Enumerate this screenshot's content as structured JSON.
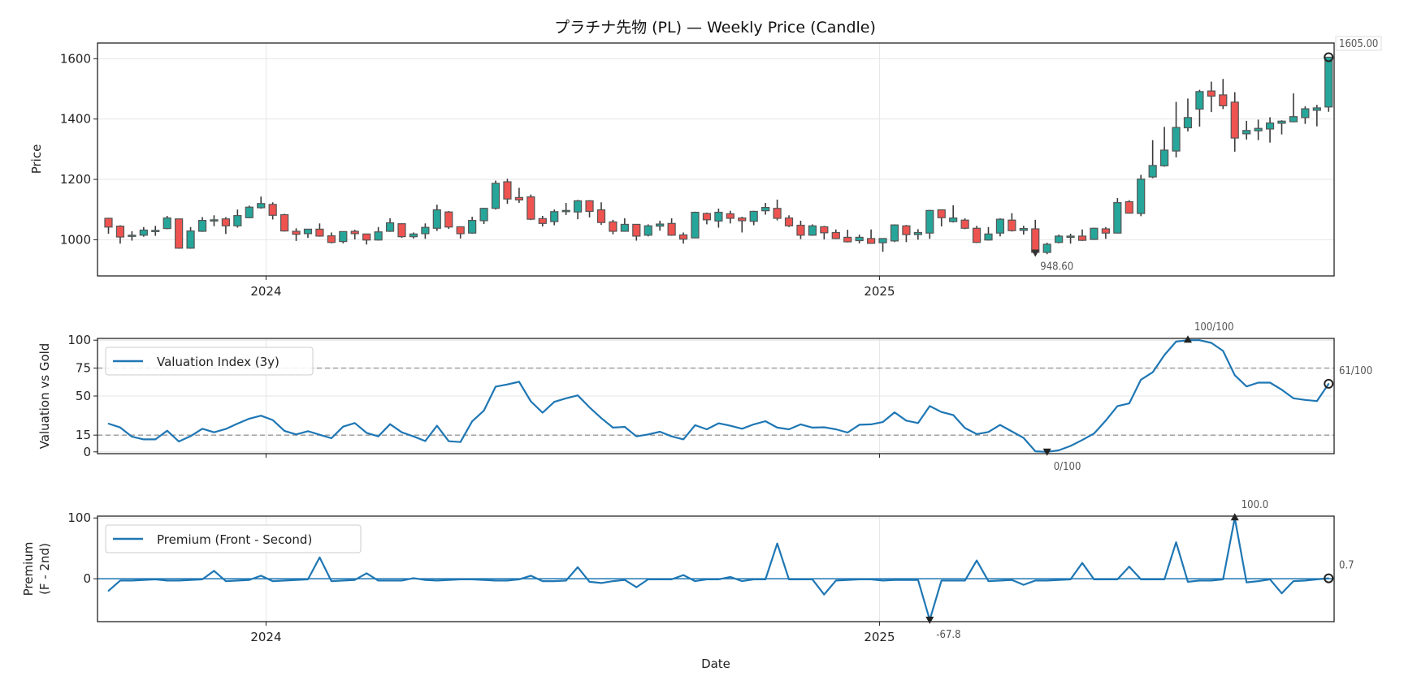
{
  "chart_data": [
    {
      "type": "candlestick",
      "title": "プラチナ先物 (PL) — Weekly Price (Candle)",
      "ylabel": "Price",
      "ylim": [
        880,
        1652
      ],
      "yticks": [
        1000,
        1200,
        1400,
        1600
      ],
      "xticks": [
        "2024",
        "2025"
      ],
      "start_date": "2023-09-29",
      "interval_days": 7,
      "colors": {
        "up": "#26a69a",
        "down": "#ef5350",
        "edge": "#555555"
      },
      "open": [
        1071,
        1045,
        1012,
        1015,
        1029,
        1037,
        1069,
        972,
        1028,
        1063,
        1069,
        1046,
        1073,
        1106,
        1117,
        1083,
        1028,
        1020,
        1035,
        1013,
        994,
        1028,
        1019,
        999,
        1028,
        1053,
        1010,
        1020,
        1038,
        1092,
        1043,
        1022,
        1063,
        1104,
        1192,
        1140,
        1142,
        1070,
        1060,
        1093,
        1092,
        1129,
        1099,
        1059,
        1028,
        1051,
        1015,
        1045,
        1054,
        1016,
        1006,
        1087,
        1062,
        1086,
        1072,
        1061,
        1096,
        1104,
        1072,
        1048,
        1015,
        1043,
        1024,
        1008,
        997,
        1004,
        990,
        996,
        1046,
        1017,
        1022,
        1099,
        1060,
        1065,
        1038,
        999,
        1022,
        1065,
        1031,
        1036,
        958,
        991,
        1008,
        1012,
        1001,
        1036,
        1022,
        1126,
        1087,
        1208,
        1245,
        1294,
        1371,
        1433,
        1493,
        1480,
        1456,
        1351,
        1361,
        1367,
        1386,
        1391,
        1405,
        1429,
        1440
      ],
      "high": [
        1073,
        1048,
        1028,
        1042,
        1046,
        1079,
        1069,
        1042,
        1075,
        1081,
        1075,
        1100,
        1113,
        1143,
        1124,
        1086,
        1038,
        1036,
        1054,
        1024,
        1028,
        1033,
        1020,
        1042,
        1071,
        1055,
        1024,
        1054,
        1116,
        1095,
        1044,
        1076,
        1106,
        1196,
        1202,
        1172,
        1150,
        1079,
        1100,
        1122,
        1132,
        1131,
        1124,
        1066,
        1071,
        1052,
        1051,
        1063,
        1071,
        1024,
        1093,
        1090,
        1103,
        1096,
        1076,
        1096,
        1122,
        1133,
        1081,
        1063,
        1051,
        1046,
        1034,
        1033,
        1017,
        1034,
        1004,
        1051,
        1049,
        1035,
        1099,
        1100,
        1114,
        1071,
        1046,
        1042,
        1071,
        1088,
        1046,
        1066,
        990,
        1017,
        1020,
        1034,
        1040,
        1042,
        1138,
        1131,
        1215,
        1330,
        1374,
        1457,
        1468,
        1497,
        1524,
        1533,
        1489,
        1394,
        1398,
        1406,
        1396,
        1485,
        1442,
        1447,
        1605
      ],
      "low": [
        1020,
        987,
        997,
        1010,
        1013,
        1035,
        970,
        970,
        1026,
        1045,
        1019,
        1040,
        1071,
        1103,
        1067,
        1027,
        996,
        1006,
        1010,
        988,
        988,
        1001,
        984,
        997,
        1026,
        1006,
        1004,
        1003,
        1029,
        1036,
        1004,
        1020,
        1052,
        1100,
        1119,
        1122,
        1065,
        1044,
        1048,
        1082,
        1068,
        1074,
        1049,
        1018,
        1027,
        997,
        1011,
        1030,
        1013,
        987,
        1005,
        1051,
        1040,
        1054,
        1024,
        1048,
        1083,
        1064,
        1042,
        1002,
        1013,
        1001,
        1002,
        991,
        988,
        987,
        960,
        992,
        992,
        1000,
        1003,
        1044,
        1057,
        1035,
        989,
        997,
        1011,
        1027,
        1017,
        948.6,
        952,
        988,
        987,
        996,
        1000,
        1003,
        1021,
        1087,
        1078,
        1204,
        1242,
        1273,
        1359,
        1375,
        1423,
        1433,
        1292,
        1332,
        1330,
        1322,
        1349,
        1391,
        1384,
        1376,
        1424
      ],
      "close": [
        1042,
        1009,
        1015,
        1032,
        1031,
        1072,
        972,
        1029,
        1064,
        1066,
        1046,
        1080,
        1108,
        1120,
        1081,
        1029,
        1018,
        1035,
        1012,
        991,
        1027,
        1020,
        999,
        1026,
        1056,
        1010,
        1019,
        1041,
        1099,
        1042,
        1020,
        1064,
        1104,
        1187,
        1135,
        1132,
        1068,
        1054,
        1093,
        1097,
        1129,
        1094,
        1057,
        1028,
        1051,
        1012,
        1046,
        1052,
        1015,
        1002,
        1091,
        1066,
        1091,
        1071,
        1063,
        1094,
        1107,
        1071,
        1046,
        1015,
        1046,
        1023,
        1004,
        993,
        1008,
        988,
        1004,
        1049,
        1017,
        1024,
        1097,
        1073,
        1072,
        1038,
        991,
        1019,
        1068,
        1030,
        1037,
        958,
        985,
        1012,
        1012,
        998,
        1038,
        1022,
        1123,
        1088,
        1201,
        1246,
        1297,
        1372,
        1405,
        1491,
        1476,
        1444,
        1337,
        1362,
        1369,
        1387,
        1393,
        1408,
        1434,
        1437,
        1605
      ],
      "annotations": {
        "max_label": "1605.00",
        "min_label": "948.60",
        "min_index": 79
      }
    },
    {
      "type": "line",
      "ylabel": "Valuation vs Gold",
      "ylim": [
        -1.6,
        101.6
      ],
      "yticks": [
        0,
        15,
        50,
        75,
        100
      ],
      "reference_lines": [
        15,
        75
      ],
      "legend": "Valuation Index (3y)",
      "legend_position": "upper-left",
      "color": "#1f77b4",
      "values": [
        25.3,
        21.9,
        13.6,
        11.2,
        11.2,
        19.0,
        9.3,
        14.1,
        20.7,
        17.5,
        20.5,
        25.3,
        29.7,
        32.4,
        28.5,
        18.8,
        15.6,
        18.5,
        15.3,
        12.2,
        22.6,
        25.8,
        17.0,
        13.9,
        24.8,
        17.5,
        13.9,
        9.7,
        23.4,
        9.5,
        8.8,
        27.3,
        37.0,
        58.4,
        60.4,
        62.8,
        45.3,
        35.1,
        44.8,
        48.0,
        50.6,
        39.9,
        30.2,
        21.7,
        22.4,
        13.9,
        15.6,
        18.0,
        13.9,
        11.2,
        23.9,
        20.2,
        25.6,
        23.4,
        20.7,
        24.6,
        27.5,
        21.7,
        20.2,
        24.6,
        21.7,
        22.0,
        20.2,
        17.3,
        24.3,
        24.6,
        26.7,
        35.4,
        28.0,
        25.8,
        41.0,
        35.7,
        33.0,
        21.4,
        15.9,
        17.8,
        24.1,
        18.3,
        12.5,
        0.5,
        0,
        1.4,
        5.3,
        10.6,
        16.4,
        28.0,
        41.0,
        43.4,
        64.6,
        71.3,
        86.7,
        98.8,
        100,
        100,
        97.6,
        90.4,
        68.7,
        58.6,
        62,
        62,
        55.7,
        48,
        46.5,
        45.5,
        61
      ],
      "annotations": {
        "max_label": "100/100",
        "max_index": 92,
        "min_label": "0/100",
        "min_index": 80,
        "last_label": "61/100"
      }
    },
    {
      "type": "line",
      "ylabel_lines": [
        "Premium",
        "(F - 2nd)"
      ],
      "xlabel": "Date",
      "ylim": [
        -70.6,
        103
      ],
      "yticks": [
        0,
        100
      ],
      "xticks": [
        "2024",
        "2025"
      ],
      "reference_lines": [
        0
      ],
      "legend": "Premium (Front - Second)",
      "legend_position": "upper-left",
      "color": "#1f77b4",
      "values": [
        -20,
        -3,
        -3,
        -2,
        -1,
        -3,
        -3,
        -2,
        -1,
        13,
        -4,
        -3,
        -2,
        5,
        -4,
        -3,
        -2,
        -1,
        35,
        -4,
        -3,
        -2,
        9,
        -3,
        -3,
        -3,
        1,
        -2,
        -3,
        -2,
        -1,
        -1,
        -2,
        -3,
        -3,
        -1,
        5,
        -4,
        -4,
        -3,
        19,
        -5,
        -7,
        -4,
        -2,
        -14,
        -1,
        -1,
        -1,
        6,
        -4,
        -1,
        -1,
        3,
        -4,
        -1,
        -1,
        58,
        -1,
        -1,
        -1,
        -26,
        -3,
        -2,
        -1,
        -1,
        -3,
        -2,
        -2,
        -2,
        -67.8,
        -3,
        -3,
        -3,
        30,
        -4,
        -3,
        -2,
        -10,
        -3,
        -3,
        -2,
        -1,
        26,
        -1,
        -1,
        -1,
        20,
        -1,
        -1,
        -1,
        60,
        -5,
        -3,
        -3,
        -1,
        100,
        -6,
        -4,
        -1,
        -24,
        -4,
        -3,
        -1,
        0.7
      ],
      "annotations": {
        "max_label": "100.0",
        "max_index": 96,
        "min_label": "-67.8",
        "min_index": 70,
        "last_label": "0.7"
      }
    }
  ]
}
